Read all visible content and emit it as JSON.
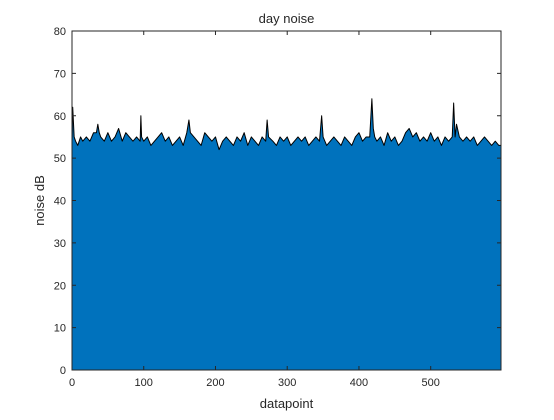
{
  "chart_data": {
    "type": "area",
    "title": "day noise",
    "xlabel": "datapoint",
    "ylabel": "noise dB",
    "xlim": [
      0,
      598
    ],
    "ylim": [
      0,
      80
    ],
    "x_ticks": [
      0,
      100,
      200,
      300,
      400,
      500
    ],
    "y_ticks": [
      0,
      10,
      20,
      30,
      40,
      50,
      60,
      70,
      80
    ],
    "grid": false,
    "legend": "none",
    "fill_color": "#0072BD",
    "edge_color": "#000000",
    "series": [
      {
        "x": [
          0,
          1,
          3,
          5,
          8,
          10,
          12,
          15,
          20,
          25,
          30,
          34,
          36,
          38,
          40,
          45,
          50,
          55,
          60,
          65,
          70,
          75,
          80,
          85,
          90,
          95,
          96,
          97,
          100,
          105,
          110,
          115,
          120,
          125,
          130,
          135,
          140,
          145,
          150,
          155,
          160,
          163,
          165,
          170,
          175,
          180,
          185,
          190,
          195,
          200,
          205,
          210,
          215,
          220,
          225,
          230,
          235,
          240,
          245,
          250,
          255,
          260,
          265,
          270,
          272,
          274,
          280,
          285,
          290,
          295,
          300,
          305,
          310,
          315,
          320,
          325,
          330,
          335,
          340,
          345,
          348,
          350,
          355,
          360,
          365,
          370,
          375,
          380,
          385,
          390,
          395,
          400,
          405,
          410,
          415,
          418,
          420,
          422,
          425,
          430,
          435,
          440,
          445,
          450,
          455,
          460,
          465,
          470,
          475,
          480,
          485,
          490,
          495,
          500,
          505,
          510,
          515,
          520,
          525,
          530,
          532,
          534,
          536,
          540,
          545,
          550,
          555,
          560,
          565,
          570,
          575,
          580,
          585,
          590,
          595,
          598
        ],
        "y": [
          54,
          62,
          55,
          54,
          53,
          54,
          55,
          54,
          55,
          54,
          56,
          56,
          58,
          56,
          55,
          54,
          56,
          54,
          55,
          57,
          54,
          56,
          55,
          54,
          55,
          54,
          60,
          55,
          54,
          55,
          53,
          54,
          55,
          56,
          54,
          55,
          53,
          54,
          55,
          53,
          56,
          59,
          56,
          55,
          54,
          53,
          56,
          55,
          54,
          55,
          52,
          54,
          55,
          54,
          53,
          55,
          54,
          56,
          53,
          55,
          54,
          53,
          55,
          54,
          59,
          55,
          54,
          53,
          55,
          54,
          55,
          53,
          54,
          55,
          54,
          55,
          53,
          54,
          55,
          54,
          60,
          55,
          53,
          54,
          55,
          54,
          53,
          55,
          54,
          53,
          55,
          56,
          54,
          55,
          55,
          64,
          57,
          55,
          54,
          55,
          53,
          56,
          54,
          55,
          53,
          54,
          56,
          57,
          55,
          56,
          54,
          55,
          54,
          56,
          54,
          55,
          53,
          55,
          54,
          55,
          63,
          55,
          58,
          55,
          54,
          55,
          54,
          55,
          53,
          54,
          55,
          54,
          53,
          54,
          53,
          53
        ]
      }
    ]
  }
}
